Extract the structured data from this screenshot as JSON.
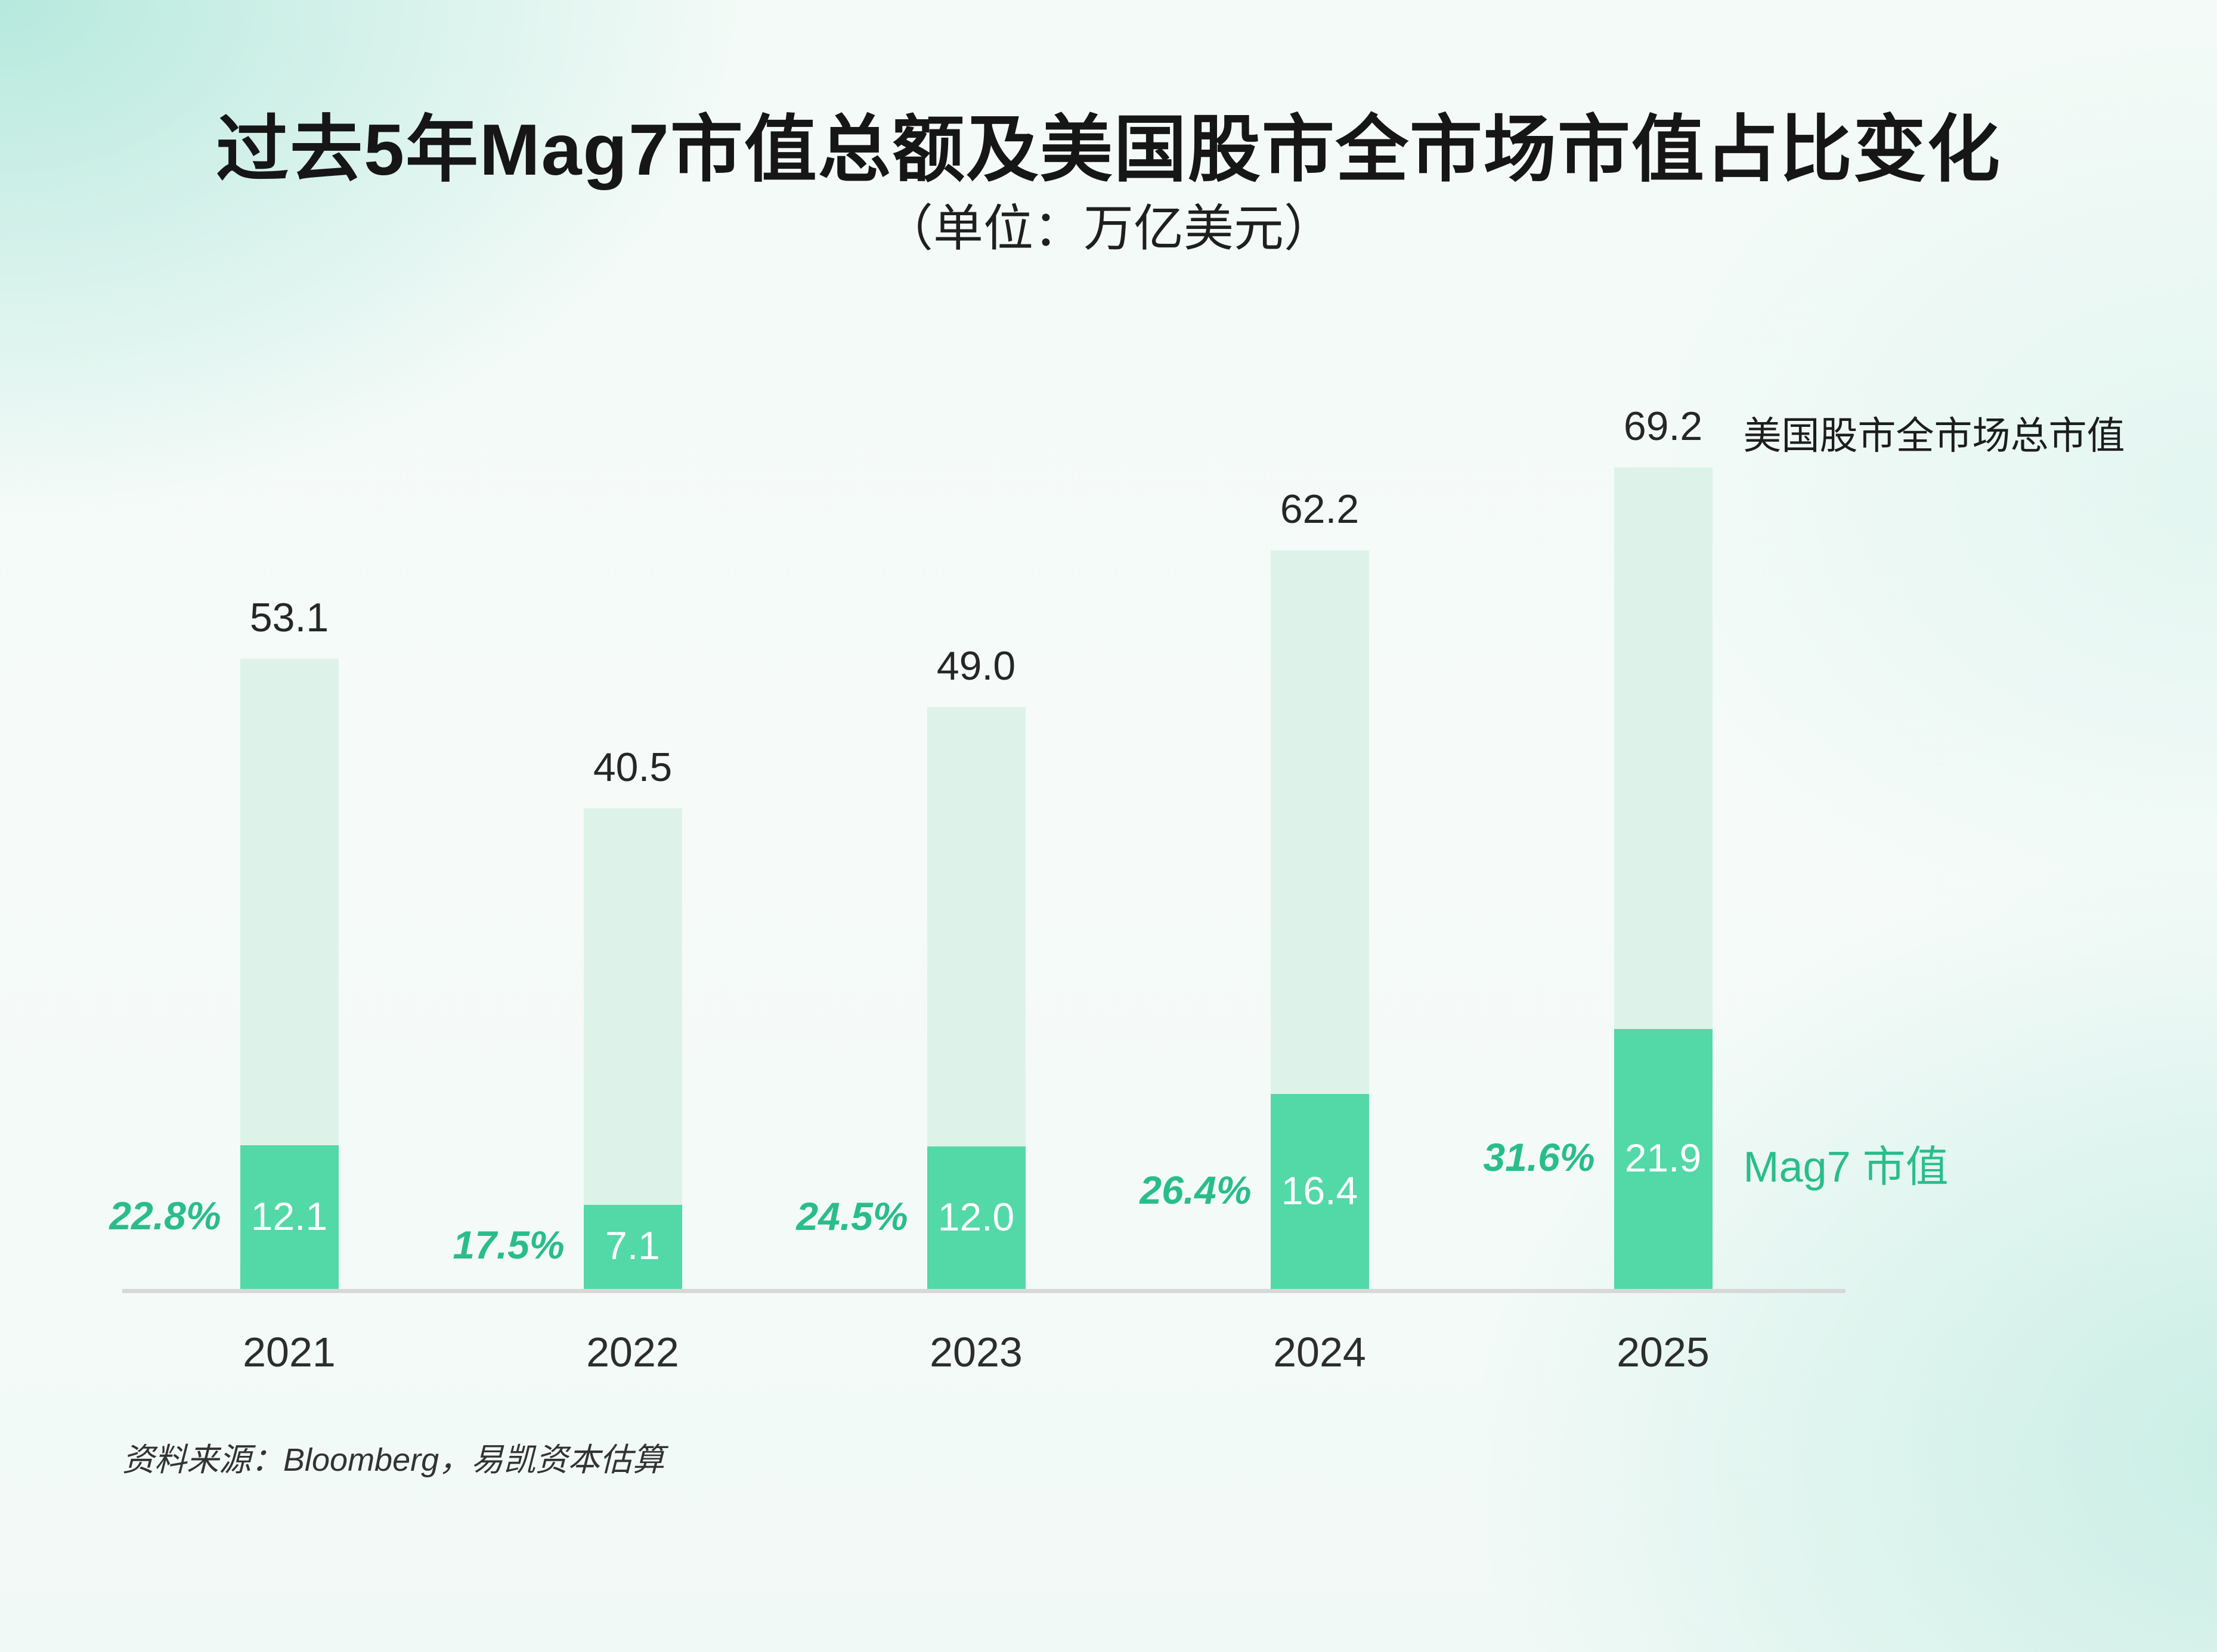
{
  "header": {
    "title": "过去5年Mag7市值总额及美国股市全市场市值占比变化",
    "subtitle": "（单位：万亿美元）"
  },
  "legend": {
    "total": "美国股市全市场总市值",
    "mag7": "Mag7 市值"
  },
  "footer": {
    "source": "资料来源：Bloomberg，易凯资本估算"
  },
  "colors": {
    "total_bar": "#ddf3e9",
    "mag7_bar": "#53d8a8",
    "percent_text": "#2abd8c",
    "value_text_on_bar": "#ffffff",
    "axis_line": "#d8d8d8"
  },
  "chart_data": {
    "type": "bar",
    "categories": [
      "2021",
      "2022",
      "2023",
      "2024",
      "2025"
    ],
    "series": [
      {
        "name": "美国股市全市场总市值",
        "values": [
          53.1,
          40.5,
          49.0,
          62.2,
          69.2
        ],
        "labels": [
          "53.1",
          "40.5",
          "49.0",
          "62.2",
          "69.2"
        ]
      },
      {
        "name": "Mag7 市值",
        "values": [
          12.1,
          7.1,
          12.0,
          16.4,
          21.9
        ],
        "labels": [
          "12.1",
          "7.1",
          "12.0",
          "16.4",
          "21.9"
        ]
      }
    ],
    "percent_labels": [
      "22.8%",
      "17.5%",
      "24.5%",
      "26.4%",
      "31.6%"
    ],
    "title": "过去5年Mag7市值总额及美国股市全市场市值占比变化",
    "subtitle": "（单位：万亿美元）",
    "xlabel": "",
    "ylabel": "",
    "ylim": [
      0,
      69.2
    ],
    "grid": false,
    "legend_position": "right-of-last-bar",
    "bars_overlaid": true
  }
}
